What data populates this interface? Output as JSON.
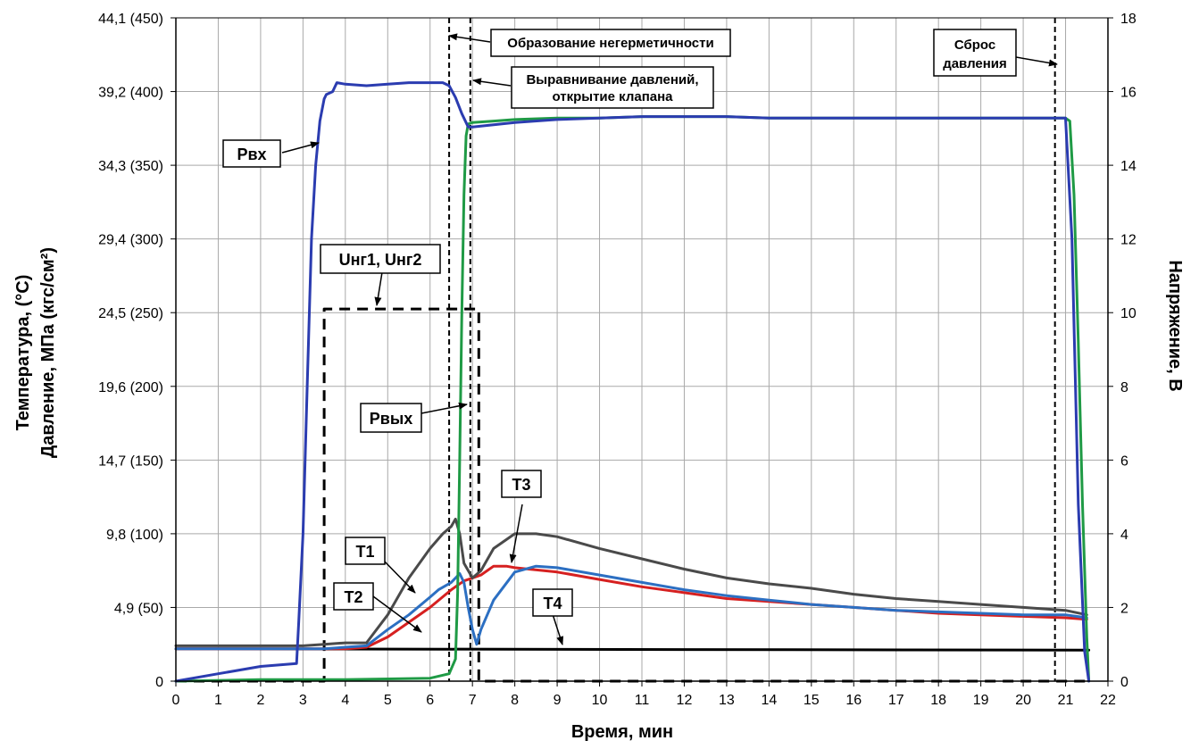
{
  "chart_data": {
    "type": "line",
    "xlabel": "Время, мин",
    "ylabel_left": [
      "Температура, (°C)",
      "Давление, МПа (кгс/см²)"
    ],
    "ylabel_right": "Напряжение, В",
    "x_ticks": [
      "0",
      "1",
      "2",
      "3",
      "4",
      "5",
      "6",
      "7",
      "8",
      "9",
      "10",
      "11",
      "12",
      "13",
      "14",
      "15",
      "16",
      "17",
      "18",
      "19",
      "20",
      "21",
      "22"
    ],
    "y_left_ticks": [
      "0",
      "4,9 (50)",
      "9,8 (100)",
      "14,7 (150)",
      "19,6 (200)",
      "24,5 (250)",
      "29,4 (300)",
      "34,3 (350)",
      "39,2 (400)",
      "44,1 (450)"
    ],
    "y_right_ticks": [
      "0",
      "2",
      "4",
      "6",
      "8",
      "10",
      "12",
      "14",
      "16",
      "18"
    ],
    "xlim": [
      0,
      22
    ],
    "ylim_left": [
      0,
      450
    ],
    "ylim_right": [
      0,
      18
    ],
    "grid": true,
    "colors": {
      "p_in": "#2b3cb0",
      "p_out": "#1f9a45",
      "t1": "#4a4a4a",
      "t2": "#2c6fc2",
      "t3": "#d62020",
      "t4": "#000000",
      "u": "#000000",
      "grid": "#a9a9a9"
    },
    "series": [
      {
        "name": "Рвх",
        "key": "p_in",
        "axis": "left",
        "x": [
          0,
          1,
          2,
          2.85,
          2.9,
          3.0,
          3.1,
          3.2,
          3.3,
          3.4,
          3.5,
          3.55,
          3.7,
          3.8,
          4.0,
          4.5,
          5.0,
          5.5,
          6.0,
          6.3,
          6.45,
          6.6,
          6.75,
          6.9,
          7.0,
          8,
          9,
          10,
          11,
          12,
          13,
          14,
          15,
          16,
          17,
          18,
          19,
          20,
          20.9,
          21.0,
          21.15,
          21.3,
          21.45,
          21.55
        ],
        "y": [
          0,
          5,
          10,
          12,
          40,
          100,
          200,
          300,
          350,
          380,
          395,
          398,
          400,
          406,
          405,
          404,
          405,
          406,
          406,
          406,
          404,
          396,
          385,
          376,
          376,
          379,
          381,
          382,
          383,
          383,
          383,
          382,
          382,
          382,
          382,
          382,
          382,
          382,
          382,
          382,
          300,
          120,
          20,
          0
        ]
      },
      {
        "name": "Рвых",
        "key": "p_out",
        "axis": "left",
        "x": [
          0,
          2,
          4,
          6,
          6.45,
          6.6,
          6.65,
          6.7,
          6.75,
          6.8,
          6.85,
          6.9,
          7.0,
          7.5,
          8,
          9,
          10,
          11,
          12,
          13,
          14,
          15,
          16,
          17,
          18,
          19,
          20,
          21.0,
          21.1,
          21.2,
          21.3,
          21.4,
          21.5,
          21.55
        ],
        "y": [
          0,
          1,
          1,
          2,
          5,
          15,
          60,
          150,
          250,
          330,
          370,
          378,
          379,
          380,
          381,
          382,
          382,
          383,
          383,
          383,
          382,
          382,
          382,
          382,
          382,
          382,
          382,
          382,
          380,
          330,
          230,
          120,
          30,
          0
        ]
      },
      {
        "name": "Т1",
        "key": "t1",
        "axis": "left",
        "x": [
          0,
          3,
          3.5,
          4.0,
          4.5,
          5.0,
          5.5,
          6.0,
          6.3,
          6.5,
          6.6,
          6.7,
          6.8,
          7.0,
          7.2,
          7.5,
          8.0,
          8.5,
          9,
          10,
          11,
          12,
          13,
          14,
          15,
          16,
          17,
          18,
          19,
          20,
          21,
          21.5
        ],
        "y": [
          24,
          24,
          25,
          26,
          26,
          45,
          70,
          90,
          100,
          105,
          110,
          100,
          80,
          70,
          75,
          90,
          100,
          100,
          98,
          90,
          83,
          76,
          70,
          66,
          63,
          59,
          56,
          54,
          52,
          50,
          48,
          45
        ]
      },
      {
        "name": "Т2",
        "key": "t2",
        "axis": "left",
        "x": [
          0,
          3.5,
          4.0,
          4.5,
          5.0,
          5.5,
          6.0,
          6.2,
          6.5,
          6.7,
          6.8,
          6.9,
          7.0,
          7.1,
          7.2,
          7.5,
          8,
          8.5,
          9,
          10,
          11,
          12,
          13,
          14,
          15,
          16,
          17,
          18,
          19,
          20,
          21,
          21.5
        ],
        "y": [
          22,
          22,
          23,
          24,
          35,
          45,
          57,
          62,
          67,
          73,
          67,
          50,
          35,
          25,
          35,
          55,
          74,
          78,
          77,
          72,
          67,
          62,
          58,
          55,
          52,
          50,
          48,
          47,
          46,
          45,
          45,
          43
        ]
      },
      {
        "name": "Т3",
        "key": "t3",
        "axis": "left",
        "x": [
          0,
          3.5,
          4.0,
          4.5,
          5.0,
          5.5,
          6.0,
          6.5,
          6.8,
          7.0,
          7.2,
          7.5,
          7.8,
          8.0,
          9,
          10,
          11,
          12,
          13,
          14,
          15,
          16,
          17,
          18,
          19,
          20,
          21,
          21.5
        ],
        "y": [
          22,
          22,
          22,
          23,
          30,
          40,
          50,
          62,
          68,
          70,
          72,
          78,
          78,
          77,
          74,
          69,
          64,
          60,
          56,
          54,
          52,
          50,
          48,
          46,
          45,
          44,
          43,
          42
        ]
      },
      {
        "name": "Т4",
        "key": "t4",
        "axis": "left",
        "x": [
          0,
          21.55
        ],
        "y": [
          22,
          21
        ]
      },
      {
        "name": "Uнг1, Uнг2",
        "key": "u",
        "axis": "right",
        "x": [
          0,
          3.5,
          3.5,
          7.15,
          7.15,
          21.5
        ],
        "y": [
          0,
          0,
          10.1,
          10.1,
          0,
          0
        ]
      }
    ],
    "markers": [
      {
        "x": 6.45,
        "label": "Образование негерметичности"
      },
      {
        "x": 6.95,
        "label": "Выравнивание давлений, открытие клапана"
      },
      {
        "x": 20.75,
        "label": "Сброс давления"
      }
    ],
    "annotations": [
      {
        "label": "Рвх"
      },
      {
        "label": "Рвых"
      },
      {
        "label": "Uнг1, Uнг2"
      },
      {
        "label": "Т1"
      },
      {
        "label": "Т2"
      },
      {
        "label": "Т3"
      },
      {
        "label": "Т4"
      }
    ]
  }
}
